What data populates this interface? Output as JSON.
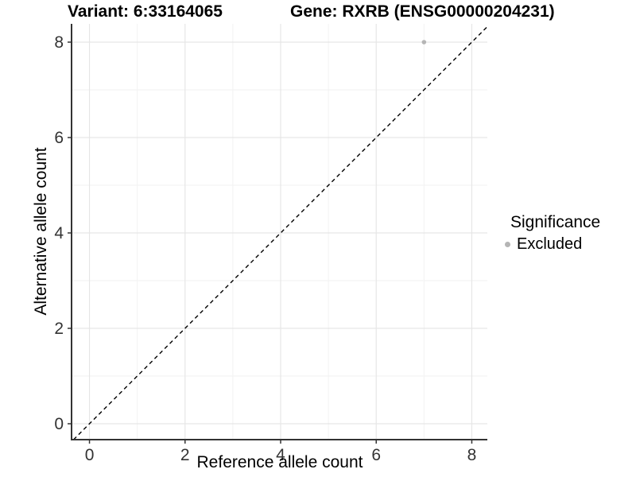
{
  "chart_data": {
    "type": "scatter",
    "titles": {
      "left": "Variant: 6:33164065",
      "right": "Gene: RXRB (ENSG00000204231)"
    },
    "xlabel": "Reference allele count",
    "ylabel": "Alternative allele count",
    "xlim": [
      -0.375,
      8.325
    ],
    "ylim": [
      -0.3333,
      8.3833
    ],
    "x_major_ticks": [
      0,
      2,
      4,
      6,
      8
    ],
    "y_major_ticks": [
      0,
      2,
      4,
      6,
      8
    ],
    "x_minor_ticks": [
      1,
      3,
      5,
      7
    ],
    "y_minor_ticks": [
      1,
      3,
      5,
      7
    ],
    "grid": {
      "major": true,
      "minor": true
    },
    "identity_line": {
      "equation": "y = x",
      "style": "dashed",
      "color": "#000000"
    },
    "series": [
      {
        "name": "Excluded",
        "color": "#b5b5b5",
        "points": [
          [
            7,
            8
          ]
        ]
      }
    ],
    "legend": {
      "title": "Significance",
      "position": "right",
      "items": [
        {
          "label": "Excluded",
          "color": "#b5b5b5"
        }
      ]
    },
    "colors": {
      "background": "#ffffff",
      "panel_background": "#ffffff",
      "major_grid": "#e6e6e6",
      "minor_grid": "#f2f2f2",
      "axis_line": "#333333",
      "tick_text": "#333333"
    }
  }
}
